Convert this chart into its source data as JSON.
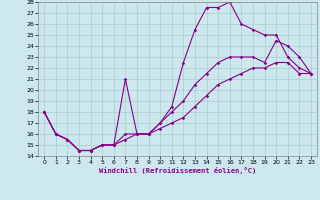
{
  "xlabel": "Windchill (Refroidissement éolien,°C)",
  "background_color": "#cce8ee",
  "grid_color": "#aacccc",
  "line_color": "#880088",
  "xlim": [
    -0.5,
    23.5
  ],
  "ylim": [
    14,
    28
  ],
  "xticks": [
    0,
    1,
    2,
    3,
    4,
    5,
    6,
    7,
    8,
    9,
    10,
    11,
    12,
    13,
    14,
    15,
    16,
    17,
    18,
    19,
    20,
    21,
    22,
    23
  ],
  "yticks": [
    14,
    15,
    16,
    17,
    18,
    19,
    20,
    21,
    22,
    23,
    24,
    25,
    26,
    27,
    28
  ],
  "line1_x": [
    0,
    1,
    2,
    3,
    4,
    5,
    6,
    7,
    8,
    9,
    10,
    11,
    12,
    13,
    14,
    15,
    16,
    17,
    18,
    19,
    20,
    21,
    22,
    23
  ],
  "line1_y": [
    18,
    16,
    15.5,
    14.5,
    14.5,
    15,
    15,
    21,
    16,
    16,
    17,
    18.5,
    22.5,
    25.5,
    27.5,
    27.5,
    28,
    26,
    25.5,
    25,
    25,
    23,
    22,
    21.5
  ],
  "line2_x": [
    0,
    1,
    2,
    3,
    4,
    5,
    6,
    7,
    8,
    9,
    10,
    11,
    12,
    13,
    14,
    15,
    16,
    17,
    18,
    19,
    20,
    21,
    22,
    23
  ],
  "line2_y": [
    18,
    16,
    15.5,
    14.5,
    14.5,
    15,
    15,
    16,
    16,
    16,
    17,
    18,
    19,
    20.5,
    21.5,
    22.5,
    23,
    23,
    23,
    22.5,
    24.5,
    24,
    23,
    21.5
  ],
  "line3_x": [
    0,
    1,
    2,
    3,
    4,
    5,
    6,
    7,
    8,
    9,
    10,
    11,
    12,
    13,
    14,
    15,
    16,
    17,
    18,
    19,
    20,
    21,
    22,
    23
  ],
  "line3_y": [
    18,
    16,
    15.5,
    14.5,
    14.5,
    15,
    15,
    15.5,
    16,
    16,
    16.5,
    17,
    17.5,
    18.5,
    19.5,
    20.5,
    21,
    21.5,
    22,
    22,
    22.5,
    22.5,
    21.5,
    21.5
  ]
}
